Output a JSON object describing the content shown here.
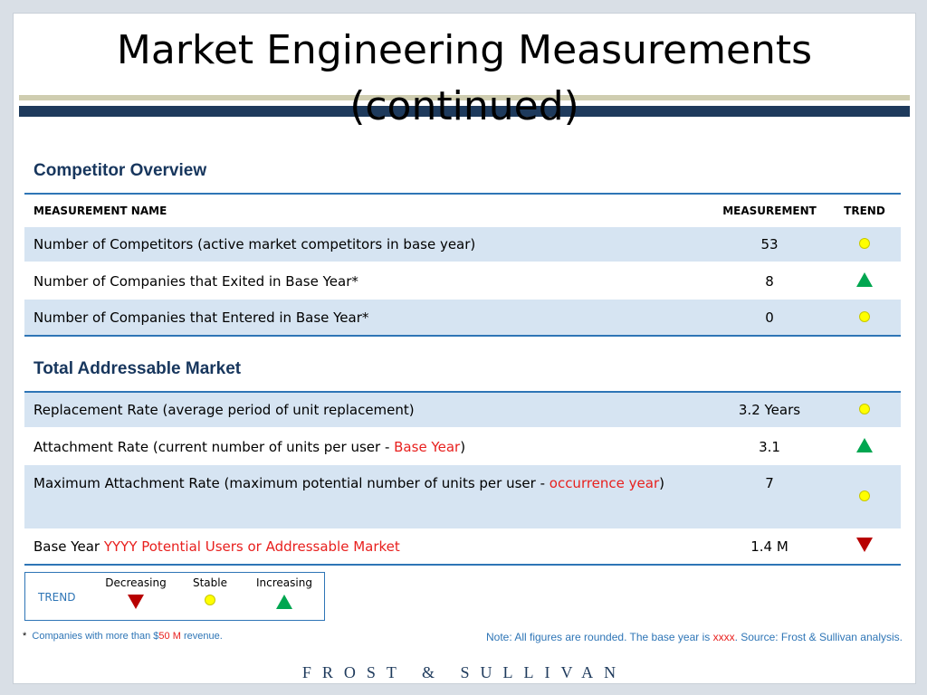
{
  "title_line1": "Market Engineering Measurements",
  "title_line2": "(continued)",
  "competitor_section": {
    "title": "Competitor Overview",
    "headers": {
      "name": "MEASUREMENT NAME",
      "measurement": "MEASUREMENT",
      "trend": "TREND"
    },
    "rows": [
      {
        "name": "Number of Competitors (active market competitors in base year)",
        "measurement": "53",
        "trend": "stable"
      },
      {
        "name": "Number  of Companies that Exited in Base Year*",
        "measurement": "8",
        "trend": "increasing"
      },
      {
        "name": "Number of Companies that Entered in Base Year*",
        "measurement": "0",
        "trend": "stable"
      }
    ]
  },
  "tam_section": {
    "title": "Total Addressable Market",
    "rows": [
      {
        "name": "Replacement Rate (average period of unit replacement)",
        "measurement": "3.2 Years",
        "trend": "stable"
      },
      {
        "name_prefix": "Attachment Rate (current number of units per user - ",
        "name_highlight": "Base Year",
        "name_suffix": ")",
        "measurement": "3.1",
        "trend": "increasing"
      },
      {
        "name_prefix": "Maximum Attachment Rate (maximum potential number of units per user -  ",
        "name_highlight": "occurrence year",
        "name_suffix": ")",
        "measurement": "7",
        "trend": "stable"
      },
      {
        "name_prefix": "Base Year ",
        "name_highlight": "YYYY Potential Users or Addressable Market",
        "name_suffix": "",
        "measurement": "1.4 M",
        "trend": "decreasing"
      }
    ]
  },
  "legend": {
    "label": "TREND",
    "decreasing": "Decreasing",
    "stable": "Stable",
    "increasing": "Increasing"
  },
  "footnote": {
    "star": "*",
    "text_before": "Companies with more than $",
    "highlight": "50 M",
    "text_after": " revenue."
  },
  "note": {
    "text_before": "Note: All figures are rounded. The base year is ",
    "highlight": "xxxx",
    "text_after": ". Source: Frost & Sullivan analysis."
  },
  "brand": "FROST & SULLIVAN",
  "colors": {
    "accent_blue": "#2e75b6",
    "navy": "#17365d",
    "row_shade": "#d6e4f2",
    "highlight_red": "#e8201e",
    "increase_green": "#00a650",
    "decrease_red": "#b80000",
    "stable_yellow": "#ffff00"
  }
}
